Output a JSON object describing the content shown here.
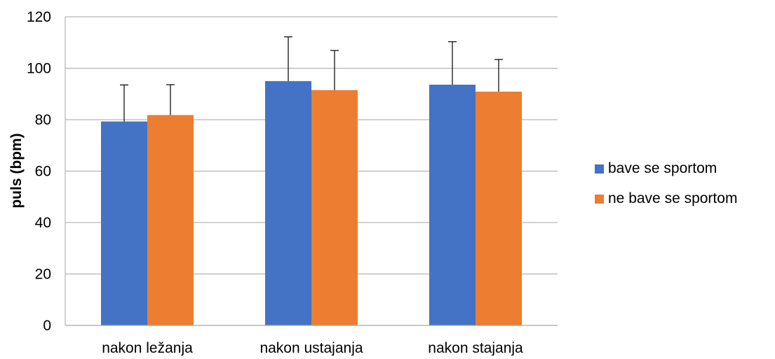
{
  "chart_data": {
    "type": "bar",
    "title": "",
    "xlabel": "",
    "ylabel": "puls (bpm)",
    "categories": [
      "nakon ležanja",
      "nakon ustajanja",
      "nakon stajanja"
    ],
    "ylim": [
      0,
      120
    ],
    "yticks": [
      0,
      20,
      40,
      60,
      80,
      100,
      120
    ],
    "grid": true,
    "legend_position": "right",
    "series": [
      {
        "name": "bave se sportom",
        "color": "#4472C4",
        "values": [
          79.3,
          95.0,
          93.6
        ],
        "error": [
          14.2,
          17.2,
          16.7
        ]
      },
      {
        "name": "ne bave se sportom",
        "color": "#ED7D31",
        "values": [
          81.8,
          91.5,
          90.9
        ],
        "error": [
          11.8,
          15.4,
          12.5
        ]
      }
    ]
  }
}
